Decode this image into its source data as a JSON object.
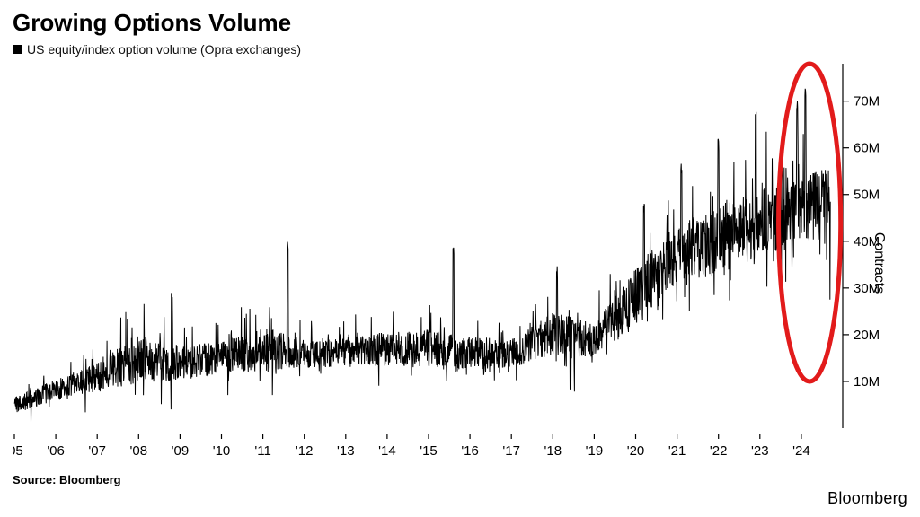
{
  "chart": {
    "type": "densely-spiky-line",
    "title": "Growing Options Volume",
    "legend_label": "US equity/index option volume (Opra exchanges)",
    "legend_swatch_color": "#000000",
    "y_axis_title": "Contracts",
    "source_label": "Source: Bloomberg",
    "brand": "Bloomberg",
    "background_color": "#ffffff",
    "line_color": "#000000",
    "line_width": 1.0,
    "title_fontsize": 26,
    "label_fontsize": 15,
    "axis_color": "#000000",
    "grid": false,
    "x_axis": {
      "ticks": [
        "'05",
        "'06",
        "'07",
        "'08",
        "'09",
        "'10",
        "'11",
        "'12",
        "'13",
        "'14",
        "'15",
        "'16",
        "'17",
        "'18",
        "'19",
        "'20",
        "'21",
        "'22",
        "'23",
        "'24"
      ],
      "range_years": [
        2005,
        2025
      ]
    },
    "y_axis": {
      "ticks": [
        10,
        20,
        30,
        40,
        50,
        60,
        70
      ],
      "tick_suffix": "M",
      "range": [
        0,
        78
      ],
      "side": "right"
    },
    "baseline_by_year": {
      "2005": 5,
      "2006": 8,
      "2007": 11,
      "2008": 15,
      "2009": 14,
      "2010": 15,
      "2011": 17,
      "2012": 16,
      "2013": 16,
      "2014": 17,
      "2015": 17,
      "2016": 16,
      "2017": 16,
      "2018": 20,
      "2019": 19,
      "2020": 28,
      "2021": 37,
      "2022": 40,
      "2023": 44,
      "2024": 48
    },
    "noise_amplitude_by_year": {
      "2005": 3,
      "2006": 4,
      "2007": 5,
      "2008": 9,
      "2009": 6,
      "2010": 6,
      "2011": 8,
      "2012": 5,
      "2013": 5,
      "2014": 6,
      "2015": 7,
      "2016": 6,
      "2017": 5,
      "2018": 8,
      "2019": 6,
      "2020": 11,
      "2021": 11,
      "2022": 12,
      "2023": 12,
      "2024": 13
    },
    "notable_spikes": [
      {
        "year": 2008.8,
        "value": 30
      },
      {
        "year": 2011.6,
        "value": 41
      },
      {
        "year": 2015.6,
        "value": 40
      },
      {
        "year": 2018.1,
        "value": 35
      },
      {
        "year": 2020.2,
        "value": 48
      },
      {
        "year": 2021.1,
        "value": 57
      },
      {
        "year": 2022.0,
        "value": 62
      },
      {
        "year": 2022.9,
        "value": 68
      },
      {
        "year": 2023.9,
        "value": 70
      },
      {
        "year": 2024.1,
        "value": 73
      }
    ],
    "annotation_ellipse": {
      "center_year": 2024.2,
      "center_value": 44,
      "rx_years": 0.75,
      "ry_value": 34,
      "stroke": "#e21b1b",
      "stroke_width": 5
    }
  }
}
